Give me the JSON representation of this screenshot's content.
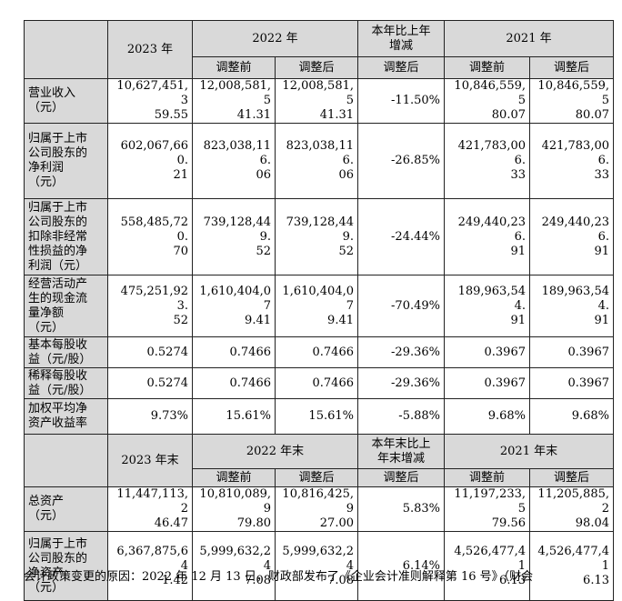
{
  "header": {
    "col_2023": "2023 年",
    "col_2022": "2022 年",
    "col_change_l1": "本年比上年",
    "col_change_l2": "增减",
    "col_2021": "2021 年",
    "sub_before": "调整前",
    "sub_after": "调整后"
  },
  "header2": {
    "col_2023": "2023 年末",
    "col_2022": "2022 年末",
    "col_change_l1": "本年末比上",
    "col_change_l2": "年末增减",
    "col_2021": "2021 年末"
  },
  "rows": [
    {
      "label": [
        "营业收入",
        "（元）"
      ],
      "v2023": [
        "10,627,451,3",
        "59.55"
      ],
      "v2022_before": [
        "12,008,581,5",
        "41.31"
      ],
      "v2022_after": [
        "12,008,581,5",
        "41.31"
      ],
      "change": "-11.50%",
      "v2021_before": [
        "10,846,559,5",
        "80.07"
      ],
      "v2021_after": [
        "10,846,559,5",
        "80.07"
      ]
    },
    {
      "label": [
        "归属于上市",
        "公司股东的",
        "净利润",
        "（元）"
      ],
      "v2023": [
        "602,067,660.",
        "21"
      ],
      "v2022_before": [
        "823,038,116.",
        "06"
      ],
      "v2022_after": [
        "823,038,116.",
        "06"
      ],
      "change": "-26.85%",
      "v2021_before": [
        "421,783,006.",
        "33"
      ],
      "v2021_after": [
        "421,783,006.",
        "33"
      ]
    },
    {
      "label": [
        "归属于上市",
        "公司股东的",
        "扣除非经常",
        "性损益的净",
        "利润（元）"
      ],
      "v2023": [
        "558,485,720.",
        "70"
      ],
      "v2022_before": [
        "739,128,449.",
        "52"
      ],
      "v2022_after": [
        "739,128,449.",
        "52"
      ],
      "change": "-24.44%",
      "v2021_before": [
        "249,440,236.",
        "91"
      ],
      "v2021_after": [
        "249,440,236.",
        "91"
      ]
    },
    {
      "label": [
        "经营活动产",
        "生的现金流",
        "量净额",
        "（元）"
      ],
      "v2023": [
        "475,251,923.",
        "52"
      ],
      "v2022_before": [
        "1,610,404,07",
        "9.41"
      ],
      "v2022_after": [
        "1,610,404,07",
        "9.41"
      ],
      "change": "-70.49%",
      "v2021_before": [
        "189,963,544.",
        "91"
      ],
      "v2021_after": [
        "189,963,544.",
        "91"
      ]
    },
    {
      "label": [
        "基本每股收",
        "益（元/股）"
      ],
      "v2023": [
        "0.5274"
      ],
      "v2022_before": [
        "0.7466"
      ],
      "v2022_after": [
        "0.7466"
      ],
      "change": "-29.36%",
      "v2021_before": [
        "0.3967"
      ],
      "v2021_after": [
        "0.3967"
      ]
    },
    {
      "label": [
        "稀释每股收",
        "益（元/股）"
      ],
      "v2023": [
        "0.5274"
      ],
      "v2022_before": [
        "0.7466"
      ],
      "v2022_after": [
        "0.7466"
      ],
      "change": "-29.36%",
      "v2021_before": [
        "0.3967"
      ],
      "v2021_after": [
        "0.3967"
      ]
    },
    {
      "label": [
        "加权平均净",
        "资产收益率"
      ],
      "v2023": [
        "9.73%"
      ],
      "v2022_before": [
        "15.61%"
      ],
      "v2022_after": [
        "15.61%"
      ],
      "change": "-5.88%",
      "v2021_before": [
        "9.68%"
      ],
      "v2021_after": [
        "9.68%"
      ]
    }
  ],
  "rows2": [
    {
      "label": [
        "总资产",
        "（元）"
      ],
      "v2023": [
        "11,447,113,2",
        "46.47"
      ],
      "v2022_before": [
        "10,810,089,9",
        "79.80"
      ],
      "v2022_after": [
        "10,816,425,9",
        "27.00"
      ],
      "change": "5.83%",
      "v2021_before": [
        "11,197,233,5",
        "79.56"
      ],
      "v2021_after": [
        "11,205,885,2",
        "98.04"
      ]
    },
    {
      "label": [
        "归属于上市",
        "公司股东的",
        "净资产",
        "（元）"
      ],
      "v2023": [
        "6,367,875,64",
        "1.42"
      ],
      "v2022_before": [
        "5,999,632,24",
        "7.08"
      ],
      "v2022_after": [
        "5,999,632,24",
        "7.08"
      ],
      "change": "6.14%",
      "v2021_before": [
        "4,526,477,41",
        "6.13"
      ],
      "v2021_after": [
        "4,526,477,41",
        "6.13"
      ]
    }
  ],
  "footnote": "会计政策变更的原因：2022 年 12 月 13 日，财政部发布了《企业会计准则解释第 16 号》（财会"
}
